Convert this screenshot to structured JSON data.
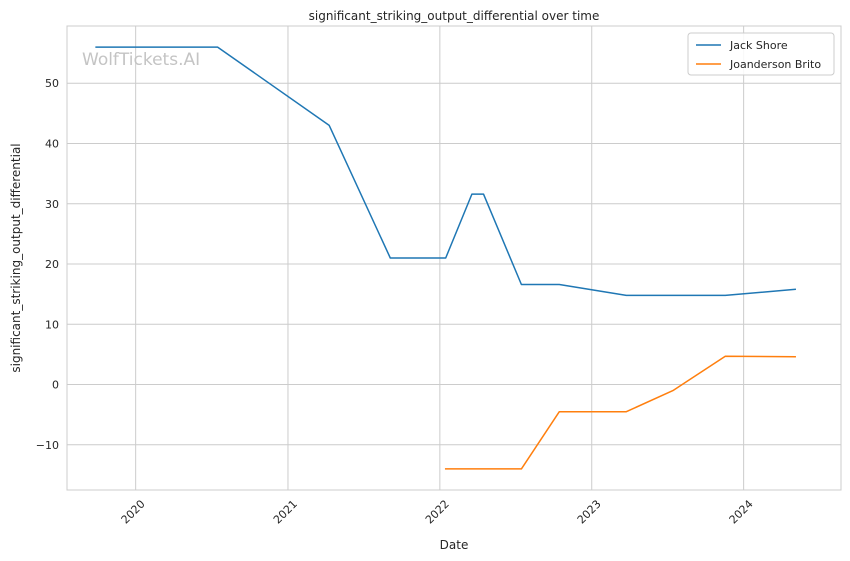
{
  "watermark": "WolfTickets.AI",
  "chart_data": {
    "type": "line",
    "title": "significant_striking_output_differential over time",
    "xlabel": "Date",
    "ylabel": "significant_striking_output_differential",
    "x_axis": "date",
    "xlim": [
      "2019-07-20",
      "2024-08-22"
    ],
    "ylim": [
      -17.5,
      59.5
    ],
    "x_ticks": [
      "2020-01-01",
      "2021-01-01",
      "2022-01-01",
      "2023-01-01",
      "2024-01-01"
    ],
    "x_tick_labels": [
      "2020",
      "2021",
      "2022",
      "2023",
      "2024"
    ],
    "y_ticks": [
      -10,
      0,
      10,
      20,
      30,
      40,
      50
    ],
    "y_tick_labels": [
      "−10",
      "0",
      "10",
      "20",
      "30",
      "40",
      "50"
    ],
    "grid": true,
    "legend_position": "top-right",
    "series": [
      {
        "name": "Jack Shore",
        "color": "#1f77b4",
        "points": [
          [
            "2019-09-28",
            56
          ],
          [
            "2020-07-16",
            56
          ],
          [
            "2021-04-10",
            43
          ],
          [
            "2021-09-04",
            21
          ],
          [
            "2022-01-15",
            21
          ],
          [
            "2022-03-19",
            31.6
          ],
          [
            "2022-04-16",
            31.6
          ],
          [
            "2022-07-16",
            16.6
          ],
          [
            "2022-10-15",
            16.6
          ],
          [
            "2023-03-25",
            14.8
          ],
          [
            "2023-11-18",
            14.8
          ],
          [
            "2024-05-04",
            15.8
          ]
        ]
      },
      {
        "name": "Joanderson Brito",
        "color": "#ff7f0e",
        "points": [
          [
            "2022-01-15",
            -14
          ],
          [
            "2022-07-16",
            -14
          ],
          [
            "2022-10-15",
            -4.5
          ],
          [
            "2023-03-25",
            -4.5
          ],
          [
            "2023-07-15",
            -1
          ],
          [
            "2023-11-18",
            4.7
          ],
          [
            "2024-05-04",
            4.6
          ]
        ]
      }
    ]
  }
}
